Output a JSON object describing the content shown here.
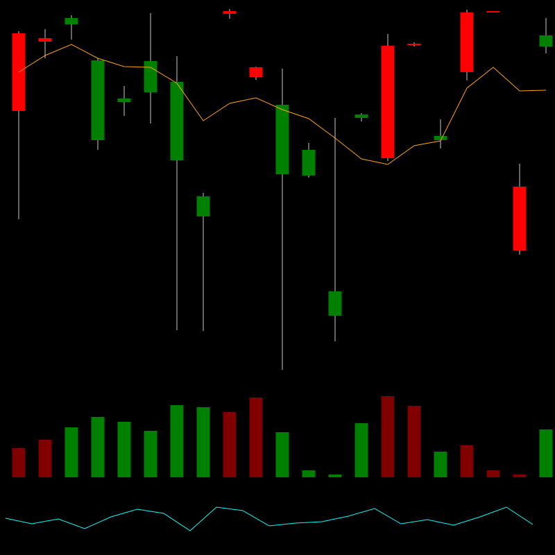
{
  "chart_data": [
    {
      "type": "candlestick",
      "open": [
        752,
        745,
        765,
        598,
        653,
        667,
        569,
        488,
        784,
        703,
        549,
        547,
        345,
        630,
        734,
        737,
        598,
        782,
        784,
        531,
        733
      ],
      "high": [
        755,
        758,
        778,
        716,
        676,
        781,
        719,
        522,
        787,
        704,
        701,
        594,
        630,
        637,
        751,
        739,
        628,
        786,
        784,
        564,
        774
      ],
      "low": [
        484,
        716,
        743,
        584,
        633,
        622,
        324,
        323,
        773,
        685,
        267,
        544,
        308,
        625,
        568,
        733,
        586,
        684,
        782,
        433,
        723
      ],
      "close": [
        640,
        740,
        774,
        713,
        658,
        712,
        682,
        517,
        780,
        689,
        649,
        584,
        380,
        635,
        572,
        735,
        604,
        696,
        782,
        439,
        749
      ],
      "up_color": "#008000",
      "down_color": "#ff0000",
      "wick_color": "#cccccc",
      "ylim": [
        0,
        800
      ],
      "series": [
        {
          "color": "#ffa500",
          "values": [
            696,
            720,
            736,
            716,
            704,
            703,
            680,
            626,
            651,
            659,
            642,
            629,
            601,
            571,
            563,
            590,
            597,
            673,
            703,
            669,
            670
          ]
        }
      ]
    },
    {
      "type": "bar",
      "values": [
        42,
        54,
        72,
        87,
        80,
        67,
        104,
        101,
        94,
        115,
        65,
        10,
        4,
        78,
        117,
        103,
        37,
        46,
        10,
        4,
        69
      ],
      "colors": [
        "#800000",
        "#800000",
        "#008000",
        "#008000",
        "#008000",
        "#008000",
        "#008000",
        "#008000",
        "#800000",
        "#800000",
        "#008000",
        "#008000",
        "#008000",
        "#008000",
        "#800000",
        "#800000",
        "#008000",
        "#800000",
        "#800000",
        "#800000",
        "#008000"
      ],
      "ylim": [
        0,
        140
      ]
    },
    {
      "type": "line",
      "values": [
        53,
        45,
        52,
        38,
        55,
        66,
        60,
        35,
        69,
        64,
        42,
        46,
        48,
        56,
        67,
        45,
        51,
        43,
        55,
        69,
        44
      ],
      "color": "#00ffff",
      "ylim": [
        0,
        100
      ]
    }
  ]
}
